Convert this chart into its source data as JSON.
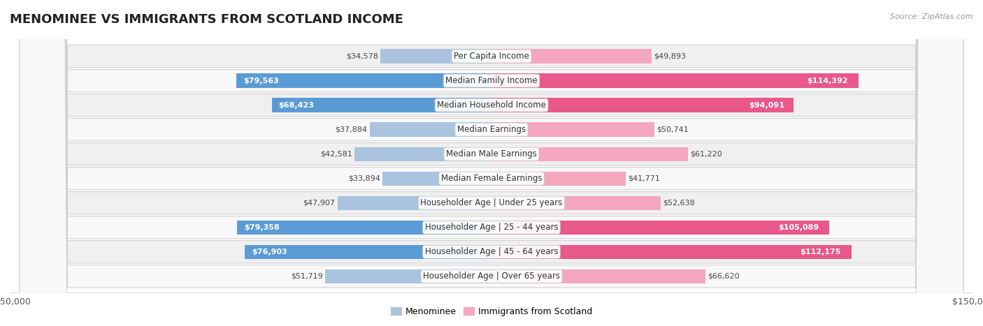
{
  "title": "MENOMINEE VS IMMIGRANTS FROM SCOTLAND INCOME",
  "source": "Source: ZipAtlas.com",
  "categories": [
    "Per Capita Income",
    "Median Family Income",
    "Median Household Income",
    "Median Earnings",
    "Median Male Earnings",
    "Median Female Earnings",
    "Householder Age | Under 25 years",
    "Householder Age | 25 - 44 years",
    "Householder Age | 45 - 64 years",
    "Householder Age | Over 65 years"
  ],
  "menominee_values": [
    34578,
    79563,
    68423,
    37884,
    42581,
    33894,
    47907,
    79358,
    76903,
    51719
  ],
  "scotland_values": [
    49893,
    114392,
    94091,
    50741,
    61220,
    41771,
    52638,
    105089,
    112175,
    66620
  ],
  "menominee_color_light": "#aac4e0",
  "menominee_color_dark": "#5b9bd5",
  "scotland_color_light": "#f4a7bf",
  "scotland_color_dark": "#e8588a",
  "menominee_threshold": 60000,
  "scotland_threshold": 80000,
  "bar_height": 0.58,
  "xlim": 150000,
  "title_fontsize": 13,
  "label_fontsize": 8.5,
  "value_fontsize": 8.0,
  "tick_fontsize": 9,
  "legend_fontsize": 9,
  "source_fontsize": 8,
  "row_colors": [
    "#f5f5f5",
    "#ebebeb",
    "#f5f5f5",
    "#ebebeb",
    "#f5f5f5",
    "#ebebeb",
    "#f5f5f5",
    "#ebebeb",
    "#f5f5f5",
    "#ebebeb"
  ]
}
